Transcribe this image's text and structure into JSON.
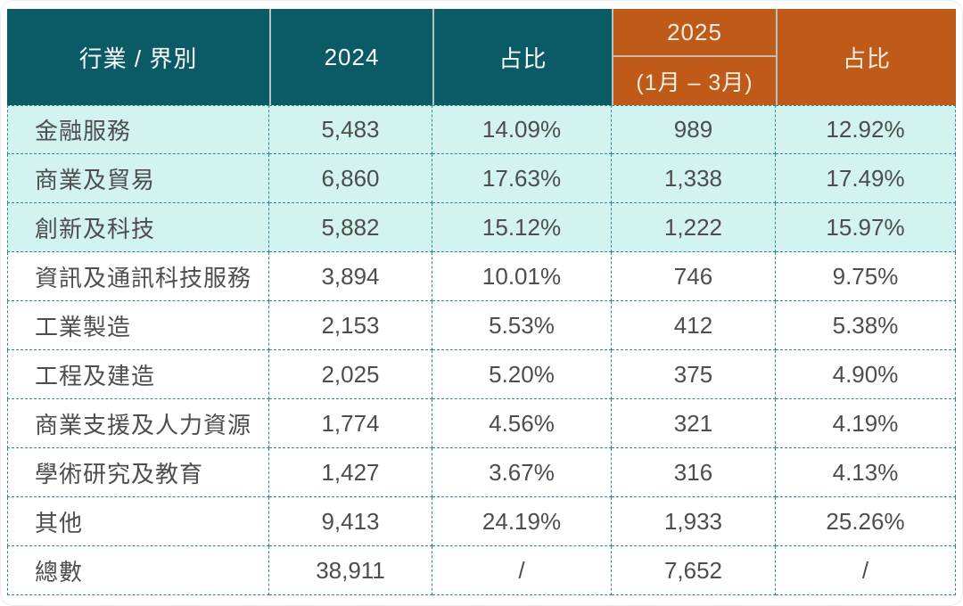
{
  "table": {
    "header": {
      "industry": "行業 / 界別",
      "y2024": "2024",
      "share2024": "占比",
      "y2025": "2025",
      "y2025_period": "(1月 – 3月)",
      "share2025": "占比"
    },
    "rows": [
      {
        "label": "金融服務",
        "v2024": "5,483",
        "s2024": "14.09%",
        "v2025": "989",
        "s2025": "12.92%"
      },
      {
        "label": "商業及貿易",
        "v2024": "6,860",
        "s2024": "17.63%",
        "v2025": "1,338",
        "s2025": "17.49%"
      },
      {
        "label": "創新及科技",
        "v2024": "5,882",
        "s2024": "15.12%",
        "v2025": "1,222",
        "s2025": "15.97%"
      },
      {
        "label": "資訊及通訊科技服務",
        "v2024": "3,894",
        "s2024": "10.01%",
        "v2025": "746",
        "s2025": "9.75%"
      },
      {
        "label": "工業製造",
        "v2024": "2,153",
        "s2024": "5.53%",
        "v2025": "412",
        "s2025": "5.38%"
      },
      {
        "label": "工程及建造",
        "v2024": "2,025",
        "s2024": "5.20%",
        "v2025": "375",
        "s2025": "4.90%"
      },
      {
        "label": "商業支援及人力資源",
        "v2024": "1,774",
        "s2024": "4.56%",
        "v2025": "321",
        "s2025": "4.19%"
      },
      {
        "label": "學術研究及教育",
        "v2024": "1,427",
        "s2024": "3.67%",
        "v2025": "316",
        "s2025": "4.13%"
      },
      {
        "label": "其他",
        "v2024": "9,413",
        "s2024": "24.19%",
        "v2025": "1,933",
        "s2025": "25.26%"
      },
      {
        "label": "總數",
        "v2024": "38,911",
        "s2024": "/",
        "v2025": "7,652",
        "s2025": "/"
      }
    ],
    "colors": {
      "header_teal": "#0a5b66",
      "header_orange": "#c05a18",
      "row_tint": "#d2f3ef",
      "dashed_border": "#2e8b95",
      "text": "#4d4d4d"
    }
  }
}
